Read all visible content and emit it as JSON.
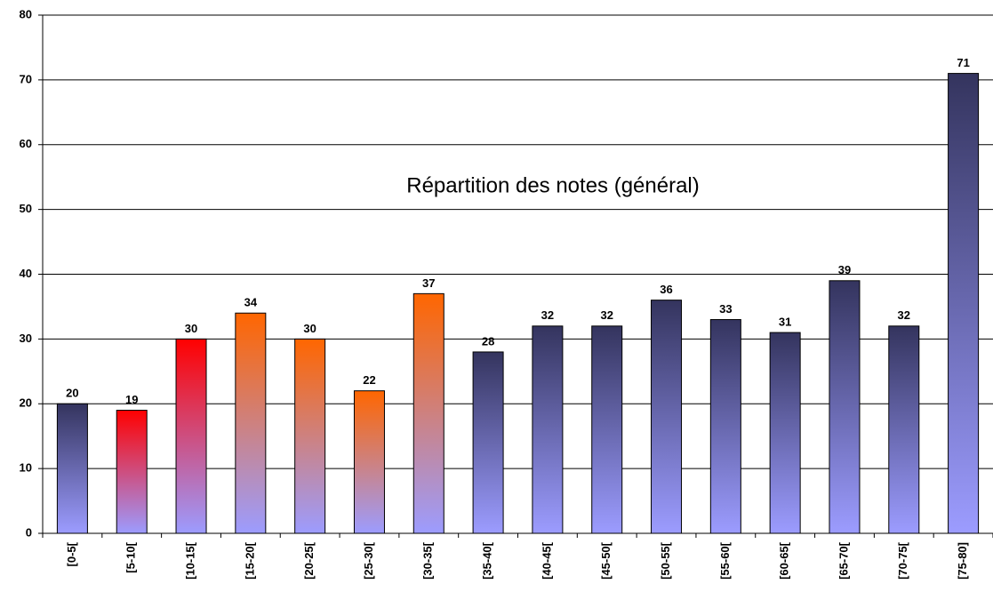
{
  "chart_data": {
    "type": "bar",
    "title": "Répartition des notes (général)",
    "categories": [
      "[0-5[",
      "[5-10[",
      "[10-15[",
      "[15-20[",
      "[20-25[",
      "[25-30[",
      "[30-35[",
      "[35-40[",
      "[40-45[",
      "[45-50[",
      "[50-55[",
      "[55-60[",
      "[60-65[",
      "[65-70[",
      "[70-75[",
      "[75-80]"
    ],
    "values": [
      20,
      19,
      30,
      34,
      30,
      22,
      37,
      28,
      32,
      32,
      36,
      33,
      31,
      39,
      32,
      71
    ],
    "colors": [
      "#34345e",
      "#ff0000",
      "#ff0000",
      "#ff6600",
      "#ff6600",
      "#ff6600",
      "#ff6600",
      "#34345e",
      "#34345e",
      "#34345e",
      "#34345e",
      "#34345e",
      "#34345e",
      "#34345e",
      "#34345e",
      "#34345e"
    ],
    "gradient_color": "#9c9cff",
    "ylim": [
      0,
      80
    ],
    "yticks": [
      0,
      10,
      20,
      30,
      40,
      50,
      60,
      70,
      80
    ],
    "grid": true
  }
}
